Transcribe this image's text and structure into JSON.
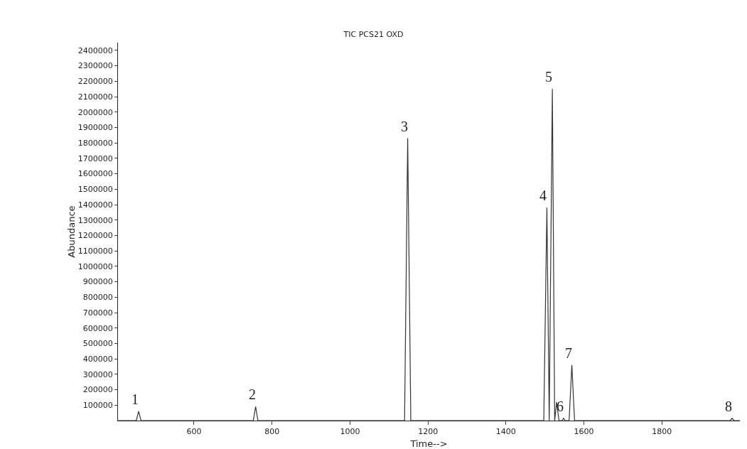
{
  "chart_data": {
    "type": "line",
    "title": "TIC PCS21 OXD",
    "xlabel": "Time-->",
    "ylabel": "Abundance",
    "series": [
      {
        "color": "#333333",
        "x": [
          405,
          452,
          458,
          464,
          752,
          758,
          764,
          1140,
          1148,
          1156,
          1497,
          1505,
          1511,
          1519,
          1525,
          1530,
          1536,
          1544,
          1548,
          1552,
          1562,
          1569,
          1576,
          1975,
          1980,
          1985,
          2000
        ],
        "values": [
          0,
          0,
          60000,
          0,
          0,
          90000,
          0,
          0,
          1830000,
          0,
          0,
          1380000,
          0,
          2150000,
          0,
          120000,
          0,
          0,
          15000,
          0,
          0,
          360000,
          0,
          0,
          15000,
          0,
          0
        ]
      }
    ],
    "xlim": [
      405,
      2000
    ],
    "xticks": [
      600,
      800,
      1000,
      1200,
      1400,
      1600,
      1800
    ],
    "ylim": [
      0,
      2450000
    ],
    "yticks": [
      100000,
      200000,
      300000,
      400000,
      500000,
      600000,
      700000,
      800000,
      900000,
      1000000,
      1100000,
      1200000,
      1300000,
      1400000,
      1500000,
      1600000,
      1700000,
      1800000,
      1900000,
      2000000,
      2100000,
      2200000,
      2300000,
      2400000
    ],
    "grid": false,
    "marker": "none",
    "line_style": "solid",
    "annotations": [
      {
        "text": "1",
        "x": 458,
        "y": 60000
      },
      {
        "text": "2",
        "x": 758,
        "y": 90000
      },
      {
        "text": "3",
        "x": 1148,
        "y": 1830000
      },
      {
        "text": "4",
        "x": 1505,
        "y": 1380000
      },
      {
        "text": "5",
        "x": 1519,
        "y": 2150000
      },
      {
        "text": "6",
        "x": 1548,
        "y": 15000
      },
      {
        "text": "7",
        "x": 1569,
        "y": 360000
      },
      {
        "text": "8",
        "x": 1980,
        "y": 15000
      }
    ]
  }
}
